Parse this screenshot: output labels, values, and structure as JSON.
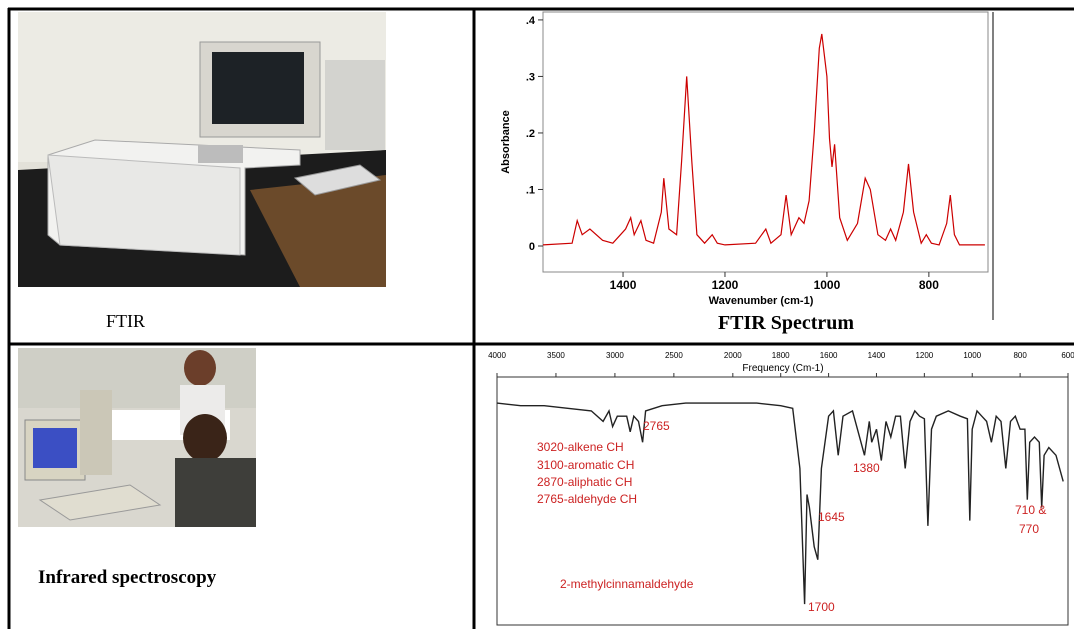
{
  "captions": [
    "FTIR",
    "FTIR Spectrum",
    "Infrared spectroscopy"
  ],
  "chart_data": [
    {
      "type": "line",
      "y_label": "Absorbance",
      "x_label": "Wavenumber (cm-1)",
      "x": [
        1557,
        1500,
        1490,
        1480,
        1465,
        1440,
        1420,
        1405,
        1395,
        1385,
        1378,
        1365,
        1355,
        1340,
        1325,
        1320,
        1310,
        1295,
        1285,
        1275,
        1265,
        1255,
        1240,
        1225,
        1215,
        1200,
        1140,
        1120,
        1110,
        1090,
        1080,
        1070,
        1055,
        1045,
        1035,
        1025,
        1015,
        1010,
        1000,
        995,
        990,
        985,
        975,
        960,
        940,
        925,
        915,
        900,
        885,
        875,
        865,
        850,
        840,
        830,
        815,
        805,
        795,
        780,
        765,
        758,
        750,
        740,
        690
      ],
      "series": [
        {
          "color": "#cc0000",
          "values": [
            0.002,
            0.005,
            0.045,
            0.02,
            0.03,
            0.01,
            0.005,
            0.02,
            0.03,
            0.05,
            0.02,
            0.045,
            0.01,
            0.005,
            0.06,
            0.12,
            0.03,
            0.02,
            0.15,
            0.3,
            0.15,
            0.02,
            0.005,
            0.02,
            0.005,
            0.002,
            0.005,
            0.03,
            0.005,
            0.02,
            0.09,
            0.02,
            0.05,
            0.04,
            0.08,
            0.2,
            0.35,
            0.375,
            0.3,
            0.19,
            0.14,
            0.18,
            0.05,
            0.01,
            0.04,
            0.12,
            0.1,
            0.02,
            0.01,
            0.03,
            0.01,
            0.06,
            0.145,
            0.06,
            0.005,
            0.02,
            0.005,
            0.002,
            0.04,
            0.09,
            0.02,
            0.002,
            0.002
          ]
        }
      ],
      "xlim": [
        1557,
        684
      ],
      "ylim": [
        -0.046,
        0.414
      ],
      "xticks": [
        1400,
        1200,
        1000,
        800
      ],
      "yticks": [
        0,
        {
          "value": 0.1,
          "label": ".1"
        },
        {
          "value": 0.2,
          "label": ".2"
        },
        {
          "value": 0.3,
          "label": ".3"
        },
        {
          "value": 0.4,
          "label": ".4"
        }
      ]
    },
    {
      "type": "line",
      "title": "Frequency (Cm-1)",
      "x": [
        4000,
        3800,
        3600,
        3400,
        3200,
        3100,
        3050,
        3020,
        2980,
        2900,
        2870,
        2840,
        2800,
        2765,
        2740,
        2600,
        2400,
        2200,
        2000,
        1900,
        1800,
        1750,
        1720,
        1700,
        1690,
        1680,
        1660,
        1645,
        1630,
        1600,
        1580,
        1560,
        1540,
        1500,
        1450,
        1430,
        1420,
        1400,
        1380,
        1360,
        1340,
        1320,
        1300,
        1280,
        1260,
        1240,
        1220,
        1200,
        1185,
        1170,
        1150,
        1100,
        1050,
        1020,
        1010,
        1000,
        980,
        960,
        940,
        920,
        900,
        880,
        860,
        840,
        820,
        800,
        780,
        770,
        760,
        740,
        720,
        710,
        700,
        680,
        650,
        620
      ],
      "series": [
        {
          "color": "#222222",
          "values": [
            85,
            84,
            84,
            83,
            82,
            78,
            82,
            76,
            80,
            80,
            74,
            80,
            78,
            70,
            82,
            84,
            85,
            85,
            85,
            85,
            84,
            83,
            60,
            8,
            50,
            45,
            30,
            25,
            60,
            80,
            82,
            65,
            80,
            82,
            65,
            78,
            70,
            75,
            63,
            78,
            72,
            80,
            80,
            60,
            78,
            82,
            80,
            79,
            38,
            75,
            80,
            82,
            80,
            79,
            40,
            75,
            82,
            80,
            78,
            70,
            80,
            78,
            60,
            78,
            80,
            75,
            75,
            48,
            70,
            72,
            70,
            45,
            65,
            68,
            65,
            55
          ]
        }
      ],
      "xlim": [
        4000,
        600
      ],
      "xbreak": 2000,
      "ylim": [
        0,
        95
      ],
      "xticks": [
        4000,
        3500,
        3000,
        2500,
        2000,
        1800,
        1600,
        1400,
        1200,
        1000,
        800,
        600
      ],
      "annotation_color": "#cc2222",
      "annotations": [
        "2765",
        "3020-alkene CH",
        "3100-aromatic CH",
        "2870-aliphatic CH",
        "2765-aldehyde CH",
        "1380",
        "1645",
        "710 &",
        "770",
        "2-methylcinnamaldehyde",
        "1700"
      ]
    }
  ]
}
